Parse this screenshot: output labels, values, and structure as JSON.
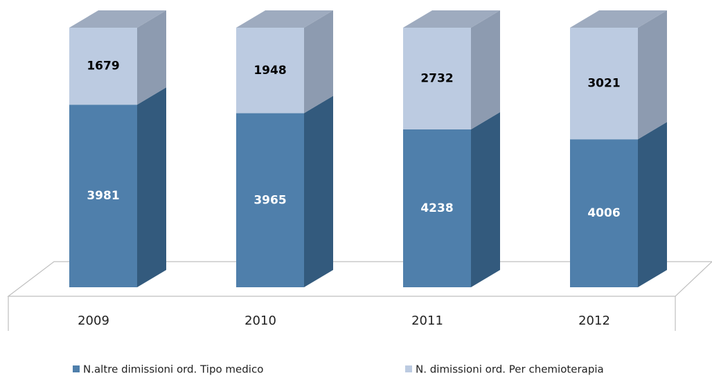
{
  "chart_data": {
    "type": "bar",
    "stacking": "percent",
    "categories": [
      "2009",
      "2010",
      "2011",
      "2012"
    ],
    "series": [
      {
        "name": "N.altre dimissioni ord. Tipo medico",
        "color": "#4f7fab",
        "side_color": "#335a7d",
        "label_color": "#ffffff",
        "values": [
          3981,
          3965,
          4238,
          4006
        ]
      },
      {
        "name": "N. dimissioni ord. Per chemioterapia",
        "color": "#bccbe1",
        "side_color": "#8d9bb0",
        "top_color": "#9eabbf",
        "label_color": "#000000",
        "values": [
          1679,
          1948,
          2732,
          3021
        ]
      }
    ]
  }
}
